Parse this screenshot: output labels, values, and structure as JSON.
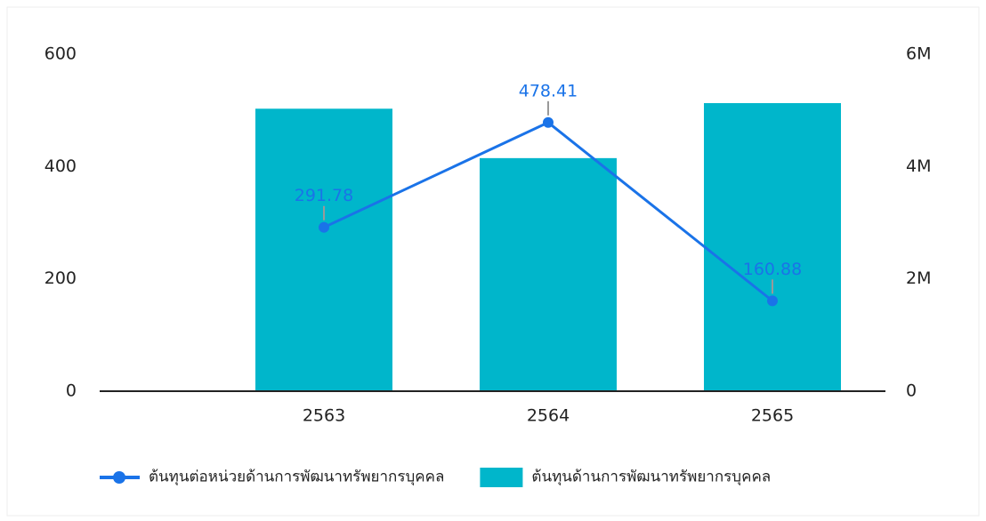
{
  "chart_data": {
    "type": "combo",
    "categories": [
      "2563",
      "2564",
      "2565"
    ],
    "series": [
      {
        "name": "ต้นทุนต่อหน่วยด้านการพัฒนาทรัพยากรบุคคล",
        "type": "line",
        "color": "#1a73e8",
        "axis": "y",
        "values": [
          291.78,
          478.41,
          160.88
        ]
      },
      {
        "name": "ต้นทุนด้านการพัฒนาทรัพยากรบุคคล",
        "type": "bar",
        "color": "#00b6cb",
        "axis": "y2",
        "values": [
          5030000,
          4150000,
          5130000
        ]
      }
    ],
    "ylim": [
      0,
      600
    ],
    "yticks": [
      0,
      200,
      400,
      600
    ],
    "y2lim": [
      0,
      6000000
    ],
    "y2ticks": [
      0,
      {
        "value": 2000000,
        "label": "2M"
      },
      {
        "value": 4000000,
        "label": "4M"
      },
      {
        "value": 6000000,
        "label": "6M"
      }
    ],
    "grid": false,
    "legend": "bottom"
  }
}
